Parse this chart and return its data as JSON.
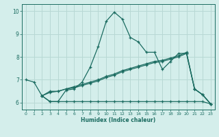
{
  "xlabel": "Humidex (Indice chaleur)",
  "xlim": [
    -0.5,
    23.5
  ],
  "ylim": [
    5.7,
    10.3
  ],
  "yticks": [
    6,
    7,
    8,
    9,
    10
  ],
  "xticks": [
    0,
    1,
    2,
    3,
    4,
    5,
    6,
    7,
    8,
    9,
    10,
    11,
    12,
    13,
    14,
    15,
    16,
    17,
    18,
    19,
    20,
    21,
    22,
    23
  ],
  "bg_color": "#d4eeeb",
  "grid_color": "#b8d8d4",
  "line_color": "#1a6b60",
  "series": [
    {
      "x": [
        0,
        1,
        2,
        3,
        4,
        5,
        6,
        7,
        8,
        9,
        10,
        11,
        12,
        13,
        14,
        15,
        16,
        17,
        18,
        19,
        20,
        21,
        22,
        23
      ],
      "y": [
        7.0,
        6.9,
        6.3,
        6.05,
        6.05,
        6.55,
        6.6,
        6.9,
        7.55,
        8.45,
        9.55,
        9.95,
        9.65,
        8.85,
        8.65,
        8.2,
        8.2,
        7.45,
        7.8,
        8.15,
        8.15,
        6.6,
        6.35,
        5.95
      ]
    },
    {
      "x": [
        2,
        3,
        4,
        5,
        6,
        7,
        8,
        9,
        10,
        11,
        12,
        13,
        14,
        15,
        16,
        17,
        18,
        19,
        20,
        21,
        22,
        23
      ],
      "y": [
        6.3,
        6.05,
        6.05,
        6.05,
        6.05,
        6.05,
        6.05,
        6.05,
        6.05,
        6.05,
        6.05,
        6.05,
        6.05,
        6.05,
        6.05,
        6.05,
        6.05,
        6.05,
        6.05,
        6.05,
        6.05,
        5.95
      ]
    },
    {
      "x": [
        2,
        3,
        4,
        5,
        6,
        7,
        8,
        9,
        10,
        11,
        12,
        13,
        14,
        15,
        16,
        17,
        18,
        19,
        20,
        21,
        22,
        23
      ],
      "y": [
        6.3,
        6.45,
        6.5,
        6.6,
        6.65,
        6.75,
        6.85,
        6.95,
        7.1,
        7.2,
        7.35,
        7.45,
        7.55,
        7.65,
        7.75,
        7.8,
        7.9,
        8.0,
        8.15,
        6.6,
        6.35,
        5.95
      ]
    },
    {
      "x": [
        2,
        3,
        4,
        5,
        6,
        7,
        8,
        9,
        10,
        11,
        12,
        13,
        14,
        15,
        16,
        17,
        18,
        19,
        20,
        21,
        22,
        23
      ],
      "y": [
        6.3,
        6.5,
        6.5,
        6.6,
        6.7,
        6.8,
        6.9,
        7.0,
        7.15,
        7.25,
        7.4,
        7.5,
        7.6,
        7.7,
        7.8,
        7.85,
        7.95,
        8.05,
        8.2,
        6.6,
        6.35,
        5.95
      ]
    }
  ]
}
